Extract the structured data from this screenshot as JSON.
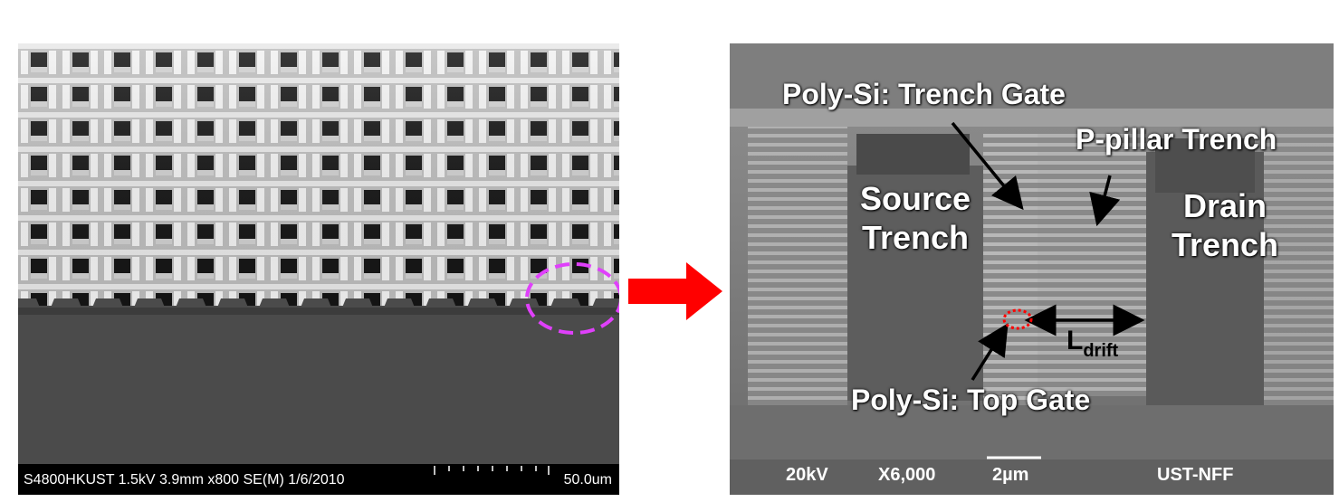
{
  "left_panel": {
    "info_text": "S4800HKUST 1.5kV 3.9mm x800 SE(M) 1/6/2010",
    "scale_label": "50.0um"
  },
  "right_panel": {
    "labels": {
      "trench_gate": "Poly-Si: Trench Gate",
      "p_pillar": "P-pillar Trench",
      "source_line1": "Source",
      "source_line2": "Trench",
      "drain_line1": "Drain",
      "drain_line2": "Trench",
      "ldrift_main": "L",
      "ldrift_sub": "drift",
      "top_gate": "Poly-Si: Top Gate"
    },
    "footer": {
      "voltage": "20kV",
      "magnification": "X6,000",
      "scale": "2µm",
      "facility": "UST-NFF"
    }
  },
  "colors": {
    "highlight_ellipse": "#e040fb",
    "arrow": "#ff0000",
    "top_gate_marker": "#ff0000"
  }
}
